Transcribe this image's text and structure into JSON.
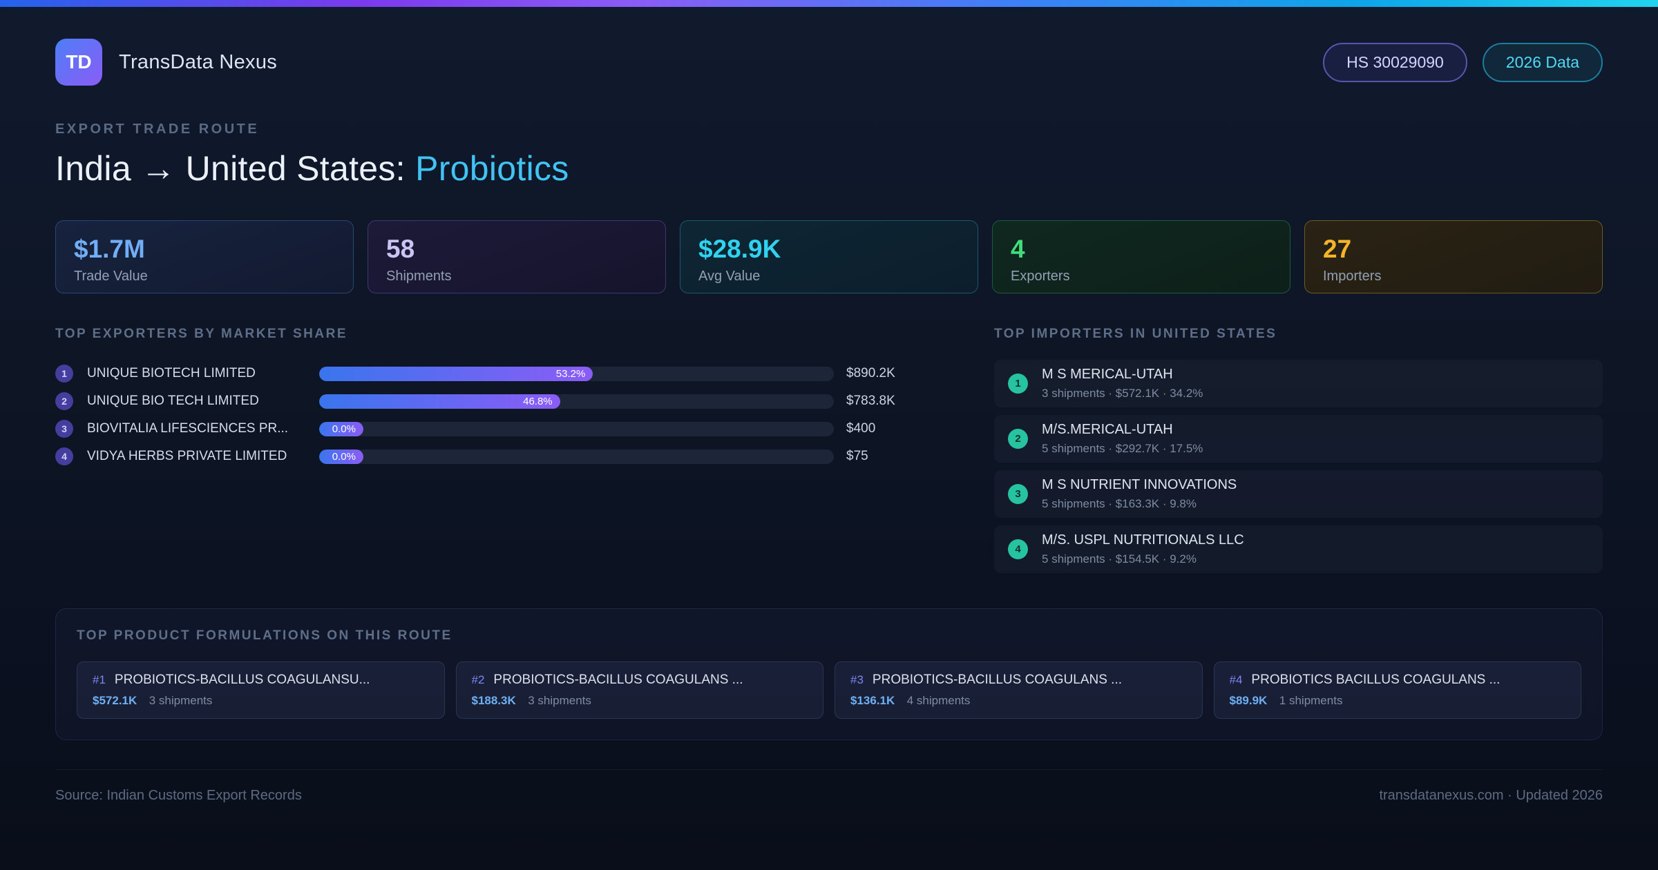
{
  "colors": {
    "accent_blue": "#3b82f6",
    "accent_purple": "#8b5cf6",
    "accent_cyan": "#22d3ee",
    "accent_green": "#4ade80",
    "accent_amber": "#fbbf24",
    "accent_teal": "#27c3a0",
    "highlight_text": "#41c4f3"
  },
  "header": {
    "logo": "TD",
    "app_name": "TransData Nexus",
    "hs_badge": "HS 30029090",
    "year_badge": "2026 Data"
  },
  "hero": {
    "eyebrow": "EXPORT TRADE ROUTE",
    "title_main": "India → United States:",
    "title_highlight": "Probiotics"
  },
  "stats": [
    {
      "value": "$1.7M",
      "label": "Trade Value",
      "theme": "blue"
    },
    {
      "value": "58",
      "label": "Shipments",
      "theme": "purple"
    },
    {
      "value": "$28.9K",
      "label": "Avg Value",
      "theme": "cyan"
    },
    {
      "value": "4",
      "label": "Exporters",
      "theme": "green"
    },
    {
      "value": "27",
      "label": "Importers",
      "theme": "amber"
    }
  ],
  "exporters": {
    "title": "TOP EXPORTERS BY MARKET SHARE",
    "rows": [
      {
        "rank": "1",
        "name": "UNIQUE BIOTECH LIMITED",
        "share_pct": 53.2,
        "share_label": "53.2%",
        "value": "$890.2K"
      },
      {
        "rank": "2",
        "name": "UNIQUE BIO TECH LIMITED",
        "share_pct": 46.8,
        "share_label": "46.8%",
        "value": "$783.8K"
      },
      {
        "rank": "3",
        "name": "BIOVITALIA LIFESCIENCES PR...",
        "share_pct": 0.0,
        "share_label": "0.0%",
        "value": "$400"
      },
      {
        "rank": "4",
        "name": "VIDYA HERBS PRIVATE LIMITED",
        "share_pct": 0.0,
        "share_label": "0.0%",
        "value": "$75"
      }
    ]
  },
  "importers": {
    "title": "TOP IMPORTERS IN UNITED STATES",
    "rows": [
      {
        "rank": "1",
        "name": "M S MERICAL-UTAH",
        "meta": "3 shipments · $572.1K · 34.2%"
      },
      {
        "rank": "2",
        "name": "M/S.MERICAL-UTAH",
        "meta": "5 shipments · $292.7K · 17.5%"
      },
      {
        "rank": "3",
        "name": "M S NUTRIENT INNOVATIONS",
        "meta": "5 shipments · $163.3K · 9.8%"
      },
      {
        "rank": "4",
        "name": "M/S. USPL NUTRITIONALS LLC",
        "meta": "5 shipments · $154.5K · 9.2%"
      }
    ]
  },
  "products": {
    "title": "TOP PRODUCT FORMULATIONS ON THIS ROUTE",
    "cards": [
      {
        "rank": "#1",
        "name": "PROBIOTICS-BACILLUS COAGULANSU...",
        "value": "$572.1K",
        "shipments": "3 shipments"
      },
      {
        "rank": "#2",
        "name": "PROBIOTICS-BACILLUS COAGULANS ...",
        "value": "$188.3K",
        "shipments": "3 shipments"
      },
      {
        "rank": "#3",
        "name": "PROBIOTICS-BACILLUS COAGULANS ...",
        "value": "$136.1K",
        "shipments": "4 shipments"
      },
      {
        "rank": "#4",
        "name": "PROBIOTICS BACILLUS COAGULANS ...",
        "value": "$89.9K",
        "shipments": "1 shipments"
      }
    ]
  },
  "footer": {
    "source": "Source: Indian Customs Export Records",
    "site": "transdatanexus.com · Updated 2026"
  }
}
